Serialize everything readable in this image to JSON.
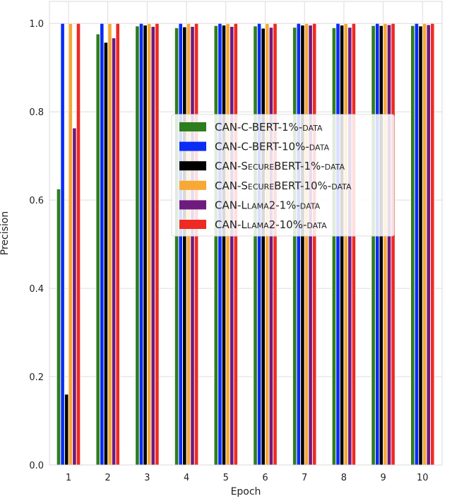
{
  "chart_data": {
    "type": "bar",
    "title": "",
    "xlabel": "Epoch",
    "ylabel": "Precision",
    "ylim": [
      0,
      1.05
    ],
    "yticks": [
      "0.0",
      "0.2",
      "0.4",
      "0.6",
      "0.8",
      "1.0"
    ],
    "categories": [
      "1",
      "2",
      "3",
      "4",
      "5",
      "6",
      "7",
      "8",
      "9",
      "10"
    ],
    "grid": true,
    "legend_position": "center",
    "series": [
      {
        "name": "CAN-C-BERT-1%-data",
        "color": "#2e7d1e",
        "values": [
          0.625,
          0.976,
          0.994,
          0.99,
          0.995,
          0.994,
          0.991,
          0.99,
          0.995,
          0.995
        ]
      },
      {
        "name": "CAN-C-BERT-10%-data",
        "color": "#0a2cf5",
        "values": [
          1.0,
          1.0,
          1.0,
          1.0,
          1.0,
          1.0,
          1.0,
          1.0,
          1.0,
          1.0
        ]
      },
      {
        "name": "CAN-SecureBERT-1%-data",
        "color": "#000000",
        "values": [
          0.16,
          0.957,
          0.996,
          0.992,
          0.996,
          0.989,
          0.996,
          0.996,
          0.995,
          0.994
        ]
      },
      {
        "name": "CAN-SecureBERT-10%-data",
        "color": "#f7a835",
        "values": [
          1.0,
          1.0,
          1.0,
          1.0,
          1.0,
          1.0,
          1.0,
          1.0,
          1.0,
          1.0
        ]
      },
      {
        "name": "CAN-Llama2-1%-data",
        "color": "#6f1a7f",
        "values": [
          0.763,
          0.967,
          0.993,
          0.993,
          0.993,
          0.991,
          0.996,
          0.991,
          0.997,
          0.997
        ]
      },
      {
        "name": "CAN-Llama2-10%-data",
        "color": "#ee2a22",
        "values": [
          1.0,
          1.0,
          1.0,
          1.0,
          1.0,
          1.0,
          1.0,
          1.0,
          1.0,
          1.0
        ]
      }
    ]
  }
}
